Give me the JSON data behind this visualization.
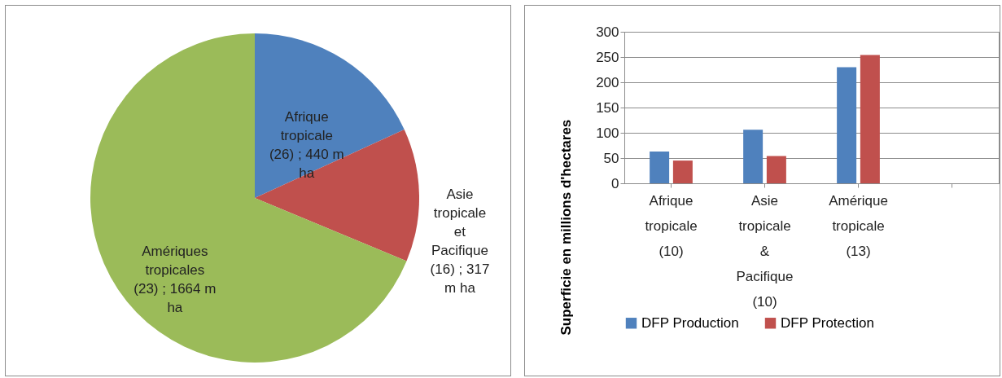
{
  "chart_data": [
    {
      "type": "pie",
      "categories": [
        "Afrique tropicale (26)",
        "Asie tropicale et Pacifique (16)",
        "Amériques tropicales (23)"
      ],
      "values": [
        440,
        317,
        1664
      ],
      "colors": [
        "#4f81bd",
        "#c0504d",
        "#9bbb59"
      ],
      "value_labels": [
        "440 m ha",
        "317 m ha",
        "1664 m ha"
      ]
    },
    {
      "type": "bar",
      "categories": [
        "Afrique tropicale (10)",
        "Asie tropicale & Pacifique (10)",
        "Amérique tropicale (13)",
        null
      ],
      "ylabel": "Superficie en millions d'hectares",
      "ylim": [
        0,
        300
      ],
      "yticks": [
        0,
        50,
        100,
        150,
        200,
        250,
        300
      ],
      "grid": "y",
      "legend": "bottom",
      "series": [
        {
          "name": "DFP Production",
          "color": "#4f81bd",
          "values": [
            63,
            106,
            230,
            null
          ]
        },
        {
          "name": "DFP Protection",
          "color": "#c0504d",
          "values": [
            45,
            54,
            254,
            null
          ]
        }
      ]
    }
  ]
}
